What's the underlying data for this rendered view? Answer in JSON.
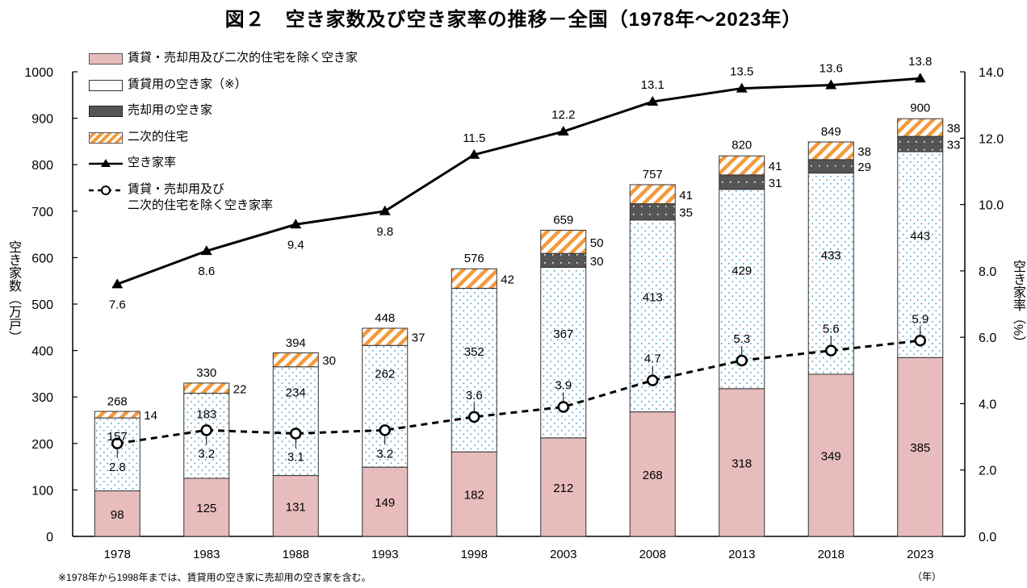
{
  "title": "図２　空き家数及び空き家率の推移－全国（1978年～2023年）",
  "footnote": "※1978年から1998年までは、賃貸用の空き家に売却用の空き家を含む。",
  "chart_data": {
    "type": "bar",
    "stacked": true,
    "title": "図２　空き家数及び空き家率の推移－全国（1978年～2023年）",
    "categories": [
      "1978",
      "1983",
      "1988",
      "1993",
      "1998",
      "2003",
      "2008",
      "2013",
      "2018",
      "2023"
    ],
    "xunit": "（年）",
    "ylabel_left": "空き家数（万戸）",
    "ylabel_right": "空き家率（%）",
    "ylim_left": [
      0,
      1000
    ],
    "yticks_left": [
      "0",
      "100",
      "200",
      "300",
      "400",
      "500",
      "600",
      "700",
      "800",
      "900",
      "1000"
    ],
    "ylim_right": [
      0,
      14
    ],
    "yticks_right": [
      "0.0",
      "2.0",
      "4.0",
      "6.0",
      "8.0",
      "10.0",
      "12.0",
      "14.0"
    ],
    "grid": false,
    "legend_placement": "top-left",
    "series": [
      {
        "name": "賃貸・売却用及び二次的住宅を除く空き家",
        "kind": "bar",
        "color": "#e8bcbc",
        "values": [
          98,
          125,
          131,
          149,
          182,
          212,
          268,
          318,
          349,
          385
        ]
      },
      {
        "name": "賃貸用の空き家（※）",
        "kind": "bar",
        "color": "#ffffff",
        "dot_color": "#4a9cc8",
        "values": [
          157,
          183,
          234,
          262,
          352,
          367,
          413,
          429,
          433,
          443
        ]
      },
      {
        "name": "売却用の空き家",
        "kind": "bar",
        "color": "#555555",
        "values": [
          null,
          null,
          null,
          null,
          null,
          30,
          35,
          31,
          29,
          33
        ]
      },
      {
        "name": "二次的住宅",
        "kind": "bar",
        "color": "#f39a3c",
        "values": [
          14,
          22,
          30,
          37,
          42,
          50,
          41,
          41,
          38,
          38
        ]
      },
      {
        "name": "空き家率",
        "kind": "line",
        "axis": "right",
        "marker": "triangle",
        "color": "#000000",
        "values": [
          7.6,
          8.6,
          9.4,
          9.8,
          11.5,
          12.2,
          13.1,
          13.5,
          13.6,
          13.8
        ],
        "labels": [
          "7.6",
          "8.6",
          "9.4",
          "9.8",
          "11.5",
          "12.2",
          "13.1",
          "13.5",
          "13.6",
          "13.8"
        ]
      },
      {
        "name": "賃貸・売却用及び\n二次的住宅を除く空き家率",
        "legend_lines": [
          "賃貸・売却用及び",
          "二次的住宅を除く空き家率"
        ],
        "kind": "line",
        "axis": "right",
        "marker": "circle",
        "dashed": true,
        "color": "#000000",
        "values": [
          2.8,
          3.2,
          3.1,
          3.2,
          3.6,
          3.9,
          4.7,
          5.3,
          5.6,
          5.9
        ],
        "labels": [
          "2.8",
          "3.2",
          "3.1",
          "3.2",
          "3.6",
          "3.9",
          "4.7",
          "5.3",
          "5.6",
          "5.9"
        ]
      }
    ],
    "totals": [
      268,
      330,
      394,
      448,
      576,
      659,
      757,
      820,
      849,
      900
    ]
  }
}
